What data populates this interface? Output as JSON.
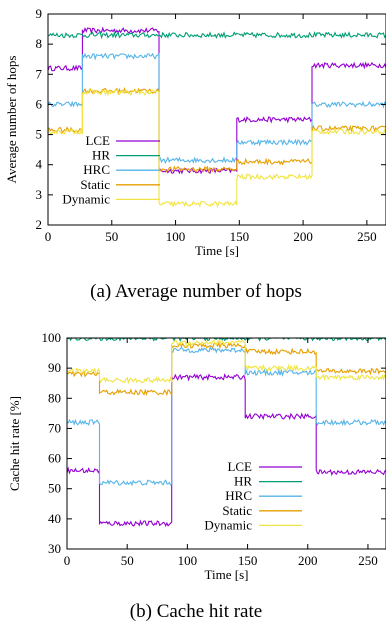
{
  "colors": {
    "LCE": "#9400d3",
    "HR": "#009e73",
    "HRC": "#56b4e9",
    "Static": "#e69f00",
    "Dynamic": "#f0e442"
  },
  "captions": {
    "a": "(a) Average number of hops",
    "b": "(b) Cache hit rate"
  },
  "chart_data": [
    {
      "type": "line",
      "xlabel": "Time [s]",
      "ylabel": "Average number of hops",
      "xlim": [
        0,
        265
      ],
      "ylim": [
        2,
        9
      ],
      "xticks": [
        0,
        50,
        100,
        150,
        200,
        250
      ],
      "yticks": [
        2,
        3,
        4,
        5,
        6,
        7,
        8,
        9
      ],
      "grid": false,
      "legend": "bottom-left",
      "series": [
        {
          "name": "LCE",
          "segments": [
            [
              0,
              27,
              7.2
            ],
            [
              27,
              87,
              8.45
            ],
            [
              87,
              148,
              3.8
            ],
            [
              148,
              207,
              5.5
            ],
            [
              207,
              265,
              7.3
            ]
          ]
        },
        {
          "name": "HR",
          "segments": [
            [
              0,
              265,
              8.3
            ]
          ]
        },
        {
          "name": "HRC",
          "segments": [
            [
              0,
              27,
              6.0
            ],
            [
              27,
              87,
              7.6
            ],
            [
              87,
              148,
              4.15
            ],
            [
              148,
              207,
              4.75
            ],
            [
              207,
              265,
              6.0
            ]
          ]
        },
        {
          "name": "Static",
          "segments": [
            [
              0,
              27,
              5.15
            ],
            [
              27,
              87,
              6.45
            ],
            [
              87,
              148,
              3.85
            ],
            [
              148,
              207,
              4.1
            ],
            [
              207,
              265,
              5.2
            ]
          ]
        },
        {
          "name": "Dynamic",
          "segments": [
            [
              0,
              27,
              5.1
            ],
            [
              27,
              87,
              6.4
            ],
            [
              87,
              148,
              2.7
            ],
            [
              148,
              207,
              3.6
            ],
            [
              207,
              265,
              5.1
            ]
          ]
        }
      ]
    },
    {
      "type": "line",
      "xlabel": "Time [s]",
      "ylabel": "Cache hit rate [%]",
      "xlim": [
        0,
        265
      ],
      "ylim": [
        30,
        100
      ],
      "xticks": [
        0,
        50,
        100,
        150,
        200,
        250
      ],
      "yticks": [
        30,
        40,
        50,
        60,
        70,
        80,
        90,
        100
      ],
      "grid": false,
      "legend": "bottom-right",
      "series": [
        {
          "name": "LCE",
          "segments": [
            [
              0,
              27,
              56
            ],
            [
              27,
              87,
              38.5
            ],
            [
              87,
              148,
              87
            ],
            [
              148,
              207,
              74
            ],
            [
              207,
              265,
              55.5
            ]
          ]
        },
        {
          "name": "HR",
          "segments": [
            [
              0,
              265,
              100
            ]
          ]
        },
        {
          "name": "HRC",
          "segments": [
            [
              0,
              27,
              72
            ],
            [
              27,
              87,
              52
            ],
            [
              87,
              148,
              96
            ],
            [
              148,
              207,
              88.5
            ],
            [
              207,
              265,
              72
            ]
          ]
        },
        {
          "name": "Static",
          "segments": [
            [
              0,
              27,
              88
            ],
            [
              27,
              87,
              82
            ],
            [
              87,
              148,
              97.5
            ],
            [
              148,
              207,
              95.5
            ],
            [
              207,
              265,
              89
            ]
          ]
        },
        {
          "name": "Dynamic",
          "segments": [
            [
              0,
              27,
              89
            ],
            [
              27,
              87,
              86
            ],
            [
              87,
              148,
              98.5
            ],
            [
              148,
              207,
              90
            ],
            [
              207,
              265,
              87
            ]
          ]
        }
      ]
    }
  ]
}
